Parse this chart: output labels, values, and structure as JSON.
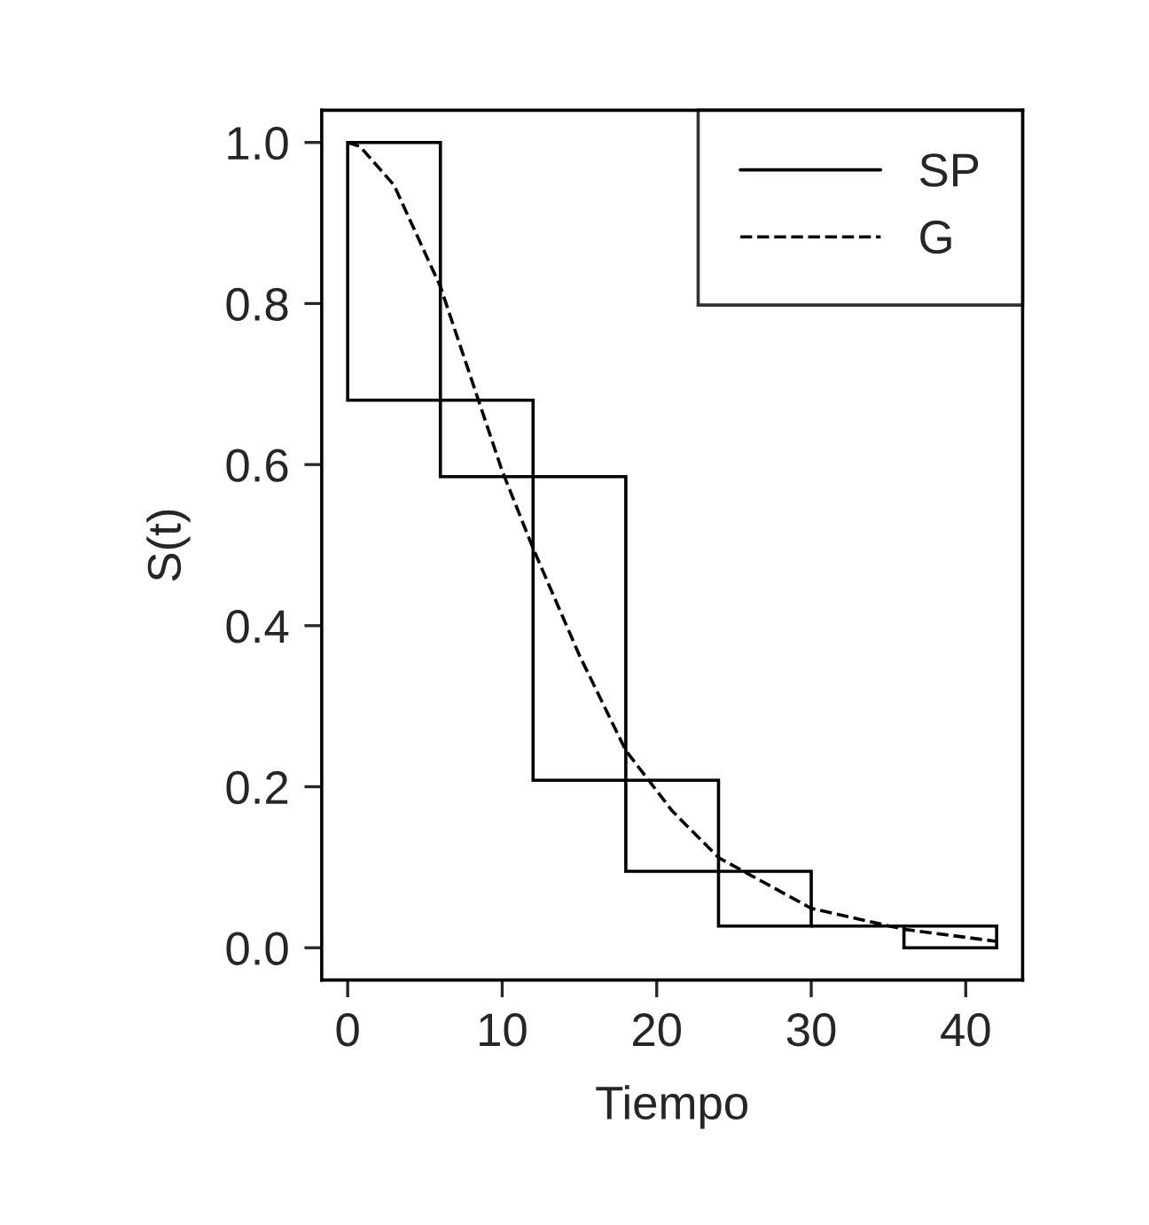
{
  "chart_data": {
    "type": "line",
    "xlabel": "Tiempo",
    "ylabel": "S(t)",
    "xlim": [
      -1.68,
      43.68
    ],
    "ylim": [
      -0.04,
      1.04
    ],
    "xticks": [
      0,
      10,
      20,
      30,
      40
    ],
    "yticks": [
      {
        "value": 0,
        "label": "0.0"
      },
      0.2,
      0.4,
      0.6,
      0.8,
      {
        "value": 1,
        "label": "1.0"
      }
    ],
    "legend": "top right",
    "grid": false,
    "series": [
      {
        "name": "SP",
        "type": "bar",
        "color": "#000000",
        "line_style": "solid",
        "x": [
          3,
          9,
          15,
          21,
          27,
          33,
          39
        ],
        "base": [
          0.68,
          0.585,
          0.208,
          0.095,
          0.027,
          0.027,
          0.0
        ],
        "values": [
          0.32,
          0.095,
          0.377,
          0.113,
          0.068,
          0.0,
          0.027
        ]
      },
      {
        "name": "G",
        "color": "#000000",
        "line_style": "dashed",
        "x": [
          0,
          0.8,
          3,
          6,
          10,
          12,
          15,
          18,
          21,
          24,
          30,
          36,
          42
        ],
        "values": [
          1.0,
          0.995,
          0.947,
          0.821,
          0.592,
          0.496,
          0.363,
          0.245,
          0.17,
          0.112,
          0.049,
          0.023,
          0.008
        ]
      }
    ]
  }
}
